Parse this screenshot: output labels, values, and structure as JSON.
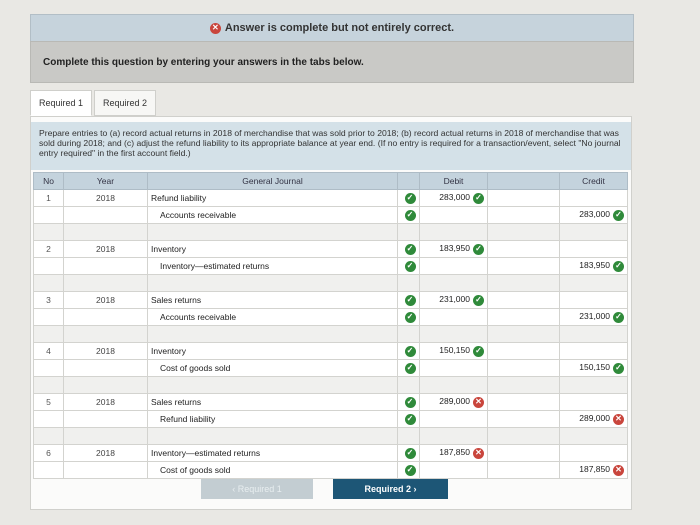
{
  "banner": {
    "text": "Answer is complete but not entirely correct."
  },
  "prompt": {
    "text": "Complete this question by entering your answers in the tabs below."
  },
  "tabs": [
    {
      "label": "Required 1"
    },
    {
      "label": "Required 2"
    }
  ],
  "instructions": "Prepare entries to (a) record actual returns in 2018 of merchandise that was sold prior to 2018; (b) record actual returns in 2018 of merchandise that was sold during 2018; and (c) adjust the refund liability to its appropriate balance at year end. (If no entry is required for a transaction/event, select \"No journal entry required\" in the first account field.)",
  "table": {
    "headers": {
      "no": "No",
      "year": "Year",
      "journal": "General Journal",
      "debit": "Debit",
      "credit": "Credit"
    },
    "entries": [
      {
        "no": "1",
        "year": "2018",
        "debit_account": "Refund liability",
        "credit_account": "Accounts receivable",
        "debit": "283,000",
        "credit": "283,000",
        "debit_ok": true,
        "credit_ok": true
      },
      {
        "no": "2",
        "year": "2018",
        "debit_account": "Inventory",
        "credit_account": "Inventory—estimated returns",
        "debit": "183,950",
        "credit": "183,950",
        "debit_ok": true,
        "credit_ok": true
      },
      {
        "no": "3",
        "year": "2018",
        "debit_account": "Sales returns",
        "credit_account": "Accounts receivable",
        "debit": "231,000",
        "credit": "231,000",
        "debit_ok": true,
        "credit_ok": true
      },
      {
        "no": "4",
        "year": "2018",
        "debit_account": "Inventory",
        "credit_account": "Cost of goods sold",
        "debit": "150,150",
        "credit": "150,150",
        "debit_ok": true,
        "credit_ok": true
      },
      {
        "no": "5",
        "year": "2018",
        "debit_account": "Sales returns",
        "credit_account": "Refund liability",
        "debit": "289,000",
        "credit": "289,000",
        "debit_ok": false,
        "credit_ok": false
      },
      {
        "no": "6",
        "year": "2018",
        "debit_account": "Inventory—estimated returns",
        "credit_account": "Cost of goods sold",
        "debit": "187,850",
        "credit": "187,850",
        "debit_ok": false,
        "credit_ok": false
      }
    ]
  },
  "nav": {
    "prev": "‹ Required 1",
    "next": "Required 2 ›"
  },
  "colors": {
    "ok": "#2f8a3a",
    "bad": "#c9453c",
    "header": "#c4d3dd",
    "next_button": "#1d5676"
  }
}
